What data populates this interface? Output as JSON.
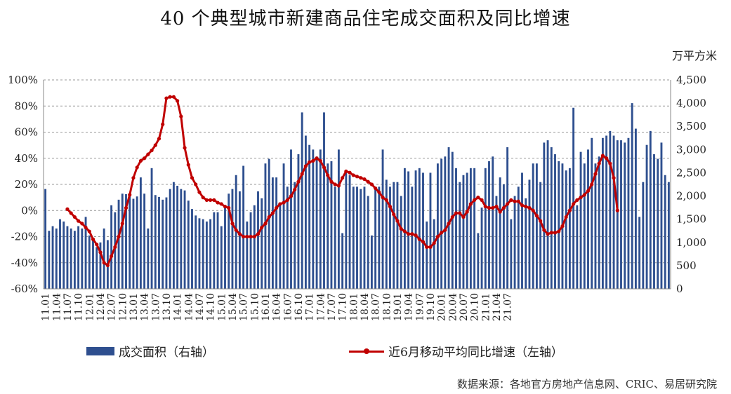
{
  "title": "40 个典型城市新建商品住宅成交面积及同比增速",
  "unit_label": "万平方米",
  "legend": {
    "bar_label": "成交面积（右轴）",
    "line_label": "近6月移动平均同比增速（左轴）"
  },
  "source": "数据来源：各地官方房地产信息网、CRIC、易居研究院",
  "colors": {
    "bars": "#2e4f8f",
    "line": "#c00000",
    "grid": "#9a9a9a"
  },
  "chart_data": {
    "type": "bar+line",
    "left_axis": {
      "min": -60,
      "max": 100,
      "step": 20,
      "ticks": [
        "-60%",
        "-40%",
        "-20%",
        "0%",
        "20%",
        "40%",
        "60%",
        "80%",
        "100%"
      ]
    },
    "right_axis": {
      "min": 0,
      "max": 4500,
      "step": 500,
      "ticks": [
        "0",
        "500",
        "1,000",
        "1,500",
        "2,000",
        "2,500",
        "3,000",
        "3,500",
        "4,000",
        "4,500"
      ]
    },
    "grid": "horizontal dashed",
    "x_tick_labels": [
      "11.01",
      "11.04",
      "11.07",
      "11.10",
      "12.01",
      "12.04",
      "12.07",
      "12.10",
      "13.01",
      "13.04",
      "13.07",
      "13.10",
      "14.01",
      "14.04",
      "14.07",
      "14.10",
      "15.01",
      "15.04",
      "15.07",
      "15.10",
      "16.01",
      "16.04",
      "16.07",
      "16.10",
      "17.01",
      "17.04",
      "17.07",
      "17.10",
      "18.01",
      "18.04",
      "18.07",
      "18.10",
      "19.01",
      "19.04",
      "19.07",
      "19.10",
      "20.01",
      "20.04",
      "20.07",
      "20.10",
      "21.01",
      "21.04",
      "21.07"
    ],
    "bar_start": "2011.01",
    "line_start": "2011.07",
    "series": [
      {
        "name": "成交面积（右轴）",
        "axis": "right",
        "kind": "bar",
        "values": [
          2150,
          1250,
          1350,
          1300,
          1500,
          1450,
          1350,
          1300,
          1250,
          1350,
          1300,
          1550,
          1150,
          1050,
          900,
          1000,
          1300,
          1050,
          1800,
          1650,
          1920,
          2050,
          2040,
          2000,
          1940,
          1990,
          2400,
          2050,
          1300,
          2600,
          2020,
          1980,
          1920,
          1970,
          2150,
          2300,
          2220,
          2150,
          2120,
          1900,
          1720,
          1580,
          1520,
          1500,
          1450,
          1500,
          1650,
          1650,
          1350,
          1750,
          2050,
          2150,
          2450,
          2100,
          2650,
          1450,
          1650,
          1800,
          2100,
          1950,
          2700,
          2800,
          2400,
          2400,
          1800,
          2700,
          2200,
          3000,
          2300,
          2900,
          3800,
          3300,
          3100,
          3000,
          2850,
          3000,
          3800,
          2700,
          2750,
          2200,
          3000,
          1200,
          2550,
          2450,
          2200,
          2200,
          2150,
          2200,
          2000,
          1150,
          2200,
          2200,
          3000,
          2350,
          2200,
          2300,
          2300,
          2000,
          2600,
          2530,
          2200,
          2550,
          2600,
          2500,
          1450,
          2500,
          1500,
          2700,
          2800,
          2850,
          3050,
          2950,
          2600,
          2300,
          2450,
          2500,
          2600,
          2600,
          1200,
          1750,
          2600,
          2750,
          2850,
          2000,
          2400,
          2250,
          3050,
          1500,
          2000,
          2200,
          2500,
          1950,
          2350,
          2700,
          2700,
          2300,
          3150,
          3200,
          3050,
          2900,
          2750,
          2700,
          2550,
          2600,
          3900,
          1800,
          2950,
          2700,
          3000,
          3250,
          2700,
          2850,
          3250,
          3300,
          3400,
          3300,
          3200,
          3200,
          3150,
          3250,
          4000,
          3450,
          1550,
          2300,
          3100,
          3400,
          2900,
          2800,
          3150,
          2450,
          2300
        ]
      },
      {
        "name": "近6月移动平均同比增速（左轴）",
        "axis": "left",
        "kind": "line",
        "values": [
          1,
          -2,
          -5,
          -8,
          -10,
          -13,
          -16,
          -22,
          -26,
          -32,
          -40,
          -42,
          -35,
          -28,
          -20,
          -10,
          2,
          12,
          25,
          33,
          38,
          40,
          43,
          46,
          50,
          55,
          66,
          86,
          87,
          87,
          84,
          72,
          48,
          35,
          25,
          20,
          14,
          10,
          8,
          8,
          8,
          6,
          5,
          3,
          2,
          -10,
          -15,
          -18,
          -20,
          -20,
          -20,
          -20,
          -18,
          -13,
          -10,
          -5,
          -2,
          2,
          5,
          6,
          8,
          11,
          16,
          22,
          28,
          34,
          37,
          38,
          40,
          38,
          33,
          27,
          22,
          20,
          19,
          25,
          30,
          29,
          27,
          26,
          25,
          24,
          22,
          20,
          17,
          14,
          10,
          8,
          3,
          -3,
          -8,
          -14,
          -16,
          -18,
          -18,
          -19,
          -22,
          -24,
          -28,
          -28,
          -25,
          -20,
          -17,
          -15,
          -10,
          -5,
          -2,
          -2,
          -5,
          -1,
          5,
          8,
          10,
          8,
          3,
          2,
          2,
          3,
          -1,
          2,
          5,
          8,
          7,
          7,
          4,
          3,
          2,
          0,
          -4,
          -8,
          -15,
          -18,
          -17,
          -17,
          -16,
          -12,
          -5,
          0,
          5,
          8,
          10,
          12,
          15,
          20,
          28,
          36,
          42,
          40,
          36,
          25,
          0
        ]
      }
    ]
  }
}
